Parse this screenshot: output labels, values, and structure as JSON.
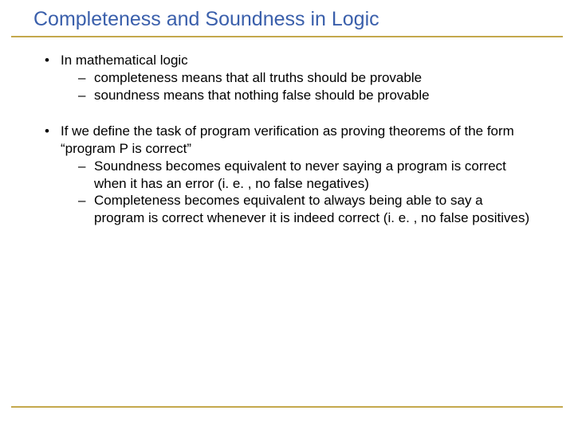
{
  "colors": {
    "title": "#3a5fab",
    "rule": "#c4a84c",
    "text": "#000000",
    "bg": "#ffffff"
  },
  "title": "Completeness and Soundness in Logic",
  "bullets": [
    {
      "text": "In mathematical logic",
      "sub": [
        "completeness means that all truths should be provable",
        "soundness means that nothing false should be provable"
      ]
    },
    {
      "text": "If we define the task of program verification as proving theorems of the form “program P is correct”",
      "sub": [
        "Soundness becomes equivalent to never saying a program is correct when it has an error (i. e. , no false negatives)",
        "Completeness becomes equivalent to always being able to say a program is correct whenever it is indeed correct (i. e. , no false positives)"
      ]
    }
  ]
}
